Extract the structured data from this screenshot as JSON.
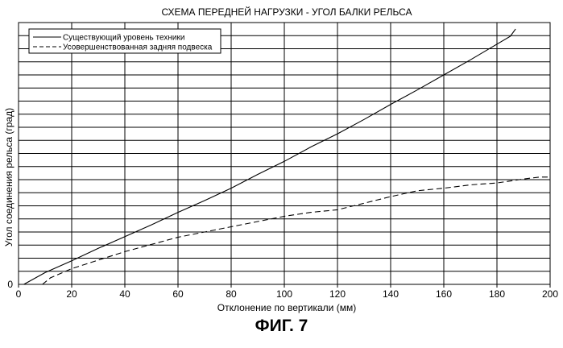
{
  "figure": {
    "caption": "ФИГ. 7"
  },
  "chart_data": {
    "type": "line",
    "title": "СХЕМА ПЕРЕДНЕЙ НАГРУЗКИ - УГОЛ БАЛКИ РЕЛЬСА",
    "xlabel": "Отклонение по вертикали (мм)",
    "ylabel": "Угол соединения рельса (град)",
    "xlim": [
      0,
      200
    ],
    "ylim": [
      0,
      4
    ],
    "x_ticks": [
      "0",
      "20",
      "40",
      "60",
      "80",
      "100",
      "120",
      "140",
      "160",
      "180",
      "200"
    ],
    "y_ticks": [
      "0"
    ],
    "y_gridlines": 20,
    "grid": true,
    "legend_position": "top-left",
    "series": [
      {
        "name": "Существующий уровень техники",
        "style": "solid",
        "color": "#000000",
        "x": [
          2,
          10,
          20,
          30,
          40,
          50,
          60,
          70,
          80,
          90,
          100,
          110,
          120,
          130,
          140,
          150,
          160,
          170,
          180,
          185,
          187
        ],
        "y": [
          0,
          0.18,
          0.36,
          0.55,
          0.73,
          0.91,
          1.1,
          1.28,
          1.47,
          1.68,
          1.88,
          2.1,
          2.3,
          2.52,
          2.75,
          2.97,
          3.2,
          3.43,
          3.67,
          3.79,
          3.9
        ]
      },
      {
        "name": "Усовершенствованная задняя подвеска",
        "style": "dashed",
        "color": "#000000",
        "x": [
          9,
          12,
          20,
          30,
          40,
          50,
          60,
          70,
          80,
          90,
          100,
          110,
          120,
          130,
          140,
          150,
          160,
          170,
          180,
          190,
          196,
          200
        ],
        "y": [
          0,
          0.1,
          0.24,
          0.37,
          0.5,
          0.61,
          0.72,
          0.8,
          0.88,
          0.96,
          1.04,
          1.1,
          1.14,
          1.24,
          1.34,
          1.43,
          1.47,
          1.52,
          1.55,
          1.61,
          1.64,
          1.64
        ]
      }
    ]
  }
}
